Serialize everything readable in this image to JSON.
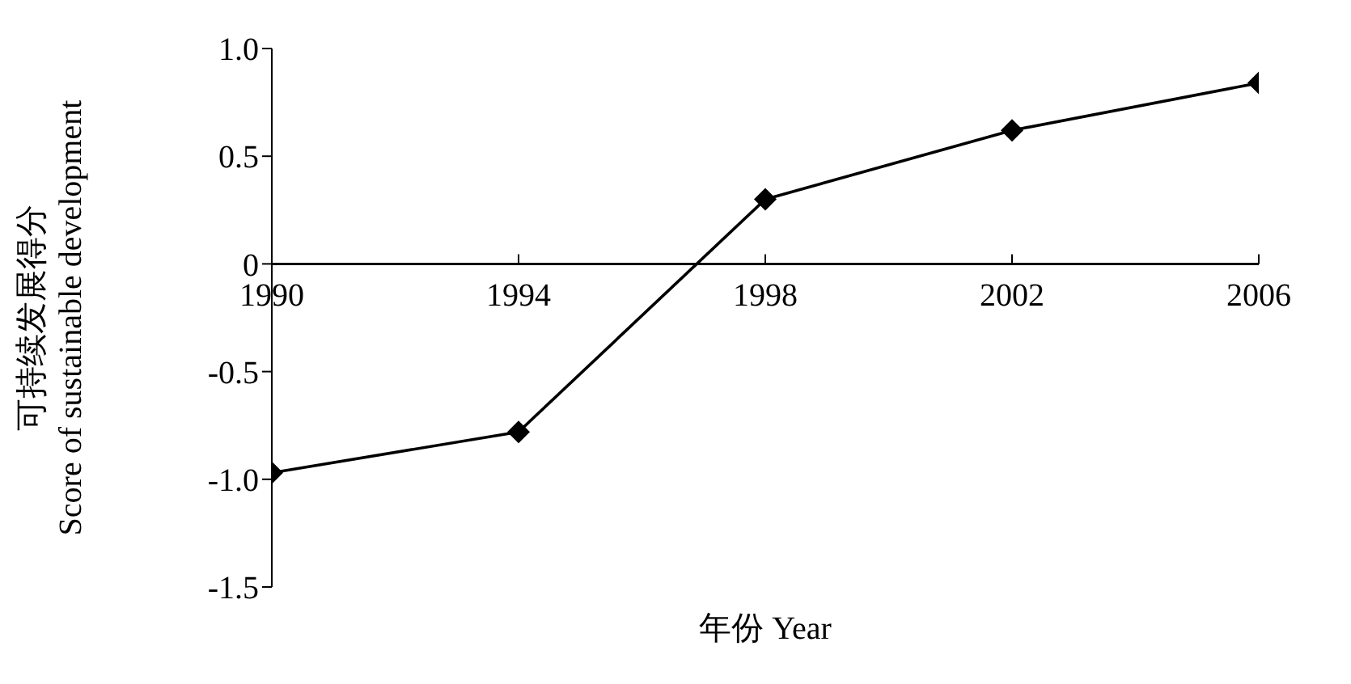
{
  "chart_data": {
    "type": "line",
    "xlabel": "年份 Year",
    "ylabel": "可持续发展得分\nScore of sustainable development",
    "x": [
      1990,
      1994,
      1998,
      2002,
      2006
    ],
    "series": [
      {
        "color": "#000000",
        "values": [
          -0.97,
          -0.78,
          0.3,
          0.62,
          0.84
        ]
      }
    ],
    "xlim": [
      1990,
      2006
    ],
    "xticks": [
      1990,
      1994,
      1998,
      2002,
      2006
    ],
    "ylim": [
      -1.5,
      1
    ],
    "yticks": [
      {
        "value": -1.5,
        "label": "-1.5"
      },
      {
        "value": -1,
        "label": "-1.0"
      },
      {
        "value": -0.5,
        "label": "-0.5"
      },
      0,
      {
        "value": 0.5,
        "label": "0.5"
      },
      {
        "value": 1,
        "label": "1.0"
      }
    ],
    "marker": "diamond",
    "line_style": "solid"
  }
}
